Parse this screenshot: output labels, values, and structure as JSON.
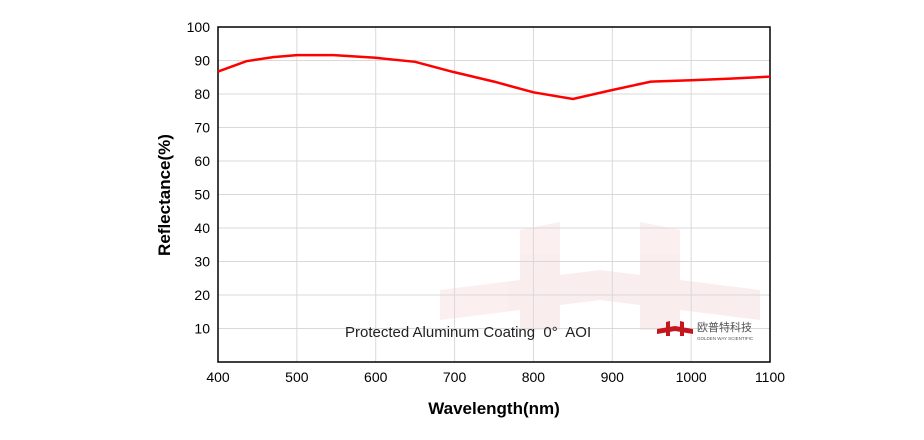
{
  "chart_data": {
    "type": "line",
    "title": "",
    "xlabel": "Wavelength(nm)",
    "ylabel": "Reflectance(%)",
    "xlim": [
      400,
      1100
    ],
    "ylim": [
      0,
      100
    ],
    "xticks": [
      400,
      500,
      600,
      700,
      800,
      900,
      1000,
      1100
    ],
    "yticks": [
      10,
      20,
      30,
      40,
      50,
      60,
      70,
      80,
      90,
      100
    ],
    "grid": true,
    "series": [
      {
        "color": "#ff0000",
        "x": [
          400,
          436,
          470,
          500,
          547,
          600,
          650,
          698,
          750,
          800,
          850,
          900,
          949,
          1000,
          1050,
          1100
        ],
        "y": [
          86.7,
          89.8,
          91.0,
          91.6,
          91.6,
          90.8,
          89.6,
          86.6,
          83.7,
          80.5,
          78.5,
          81.2,
          83.7,
          84.1,
          84.6,
          85.2
        ]
      }
    ],
    "annotation": "Protected Aluminum Coating  0°  AOI",
    "logo": {
      "text_cn": "欧普特科技",
      "text_en": "GOLDEN WAY SCIENTIFIC",
      "color": "#c4161c"
    }
  }
}
